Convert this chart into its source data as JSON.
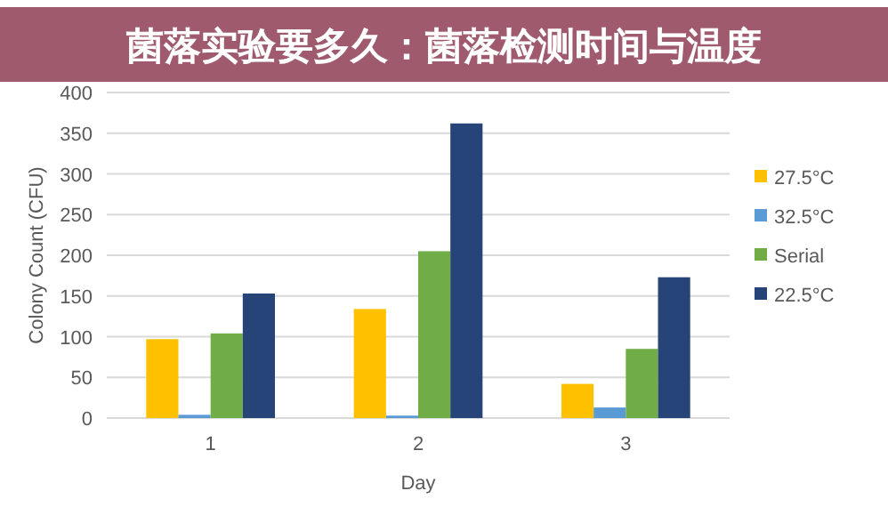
{
  "chart_data": {
    "type": "bar",
    "title": "菌落实验要多久：菌落检测时间与温度",
    "xlabel": "Day",
    "ylabel": "Colony Count (CFU)",
    "categories": [
      "1",
      "2",
      "3"
    ],
    "series": [
      {
        "name": "27.5°C",
        "color": "#ffc000",
        "values": [
          97,
          134,
          42
        ]
      },
      {
        "name": "32.5°C",
        "color": "#5b9bd5",
        "values": [
          4,
          3,
          13
        ]
      },
      {
        "name": "Serial",
        "color": "#70ad47",
        "values": [
          104,
          205,
          85
        ]
      },
      {
        "name": "22.5°C",
        "color": "#264478",
        "values": [
          153,
          362,
          173
        ]
      }
    ],
    "ylim": [
      0,
      400
    ],
    "yticks": [
      0,
      50,
      100,
      150,
      200,
      250,
      300,
      350,
      400
    ],
    "grid": "y",
    "legend": "right"
  }
}
